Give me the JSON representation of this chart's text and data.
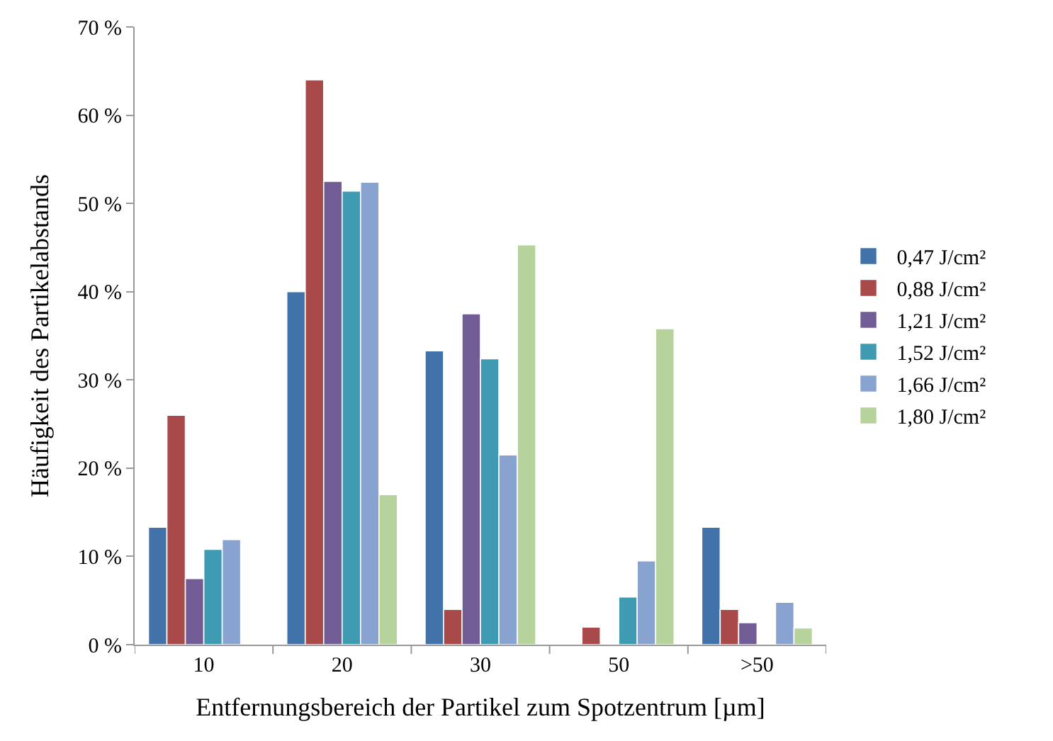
{
  "chart_data": {
    "type": "bar",
    "xlabel": "Entfernungsbereich der Partikel zum Spotzentrum [µm]",
    "ylabel": "Häufigkeit des Partikelabstands",
    "categories": [
      "10",
      "20",
      "30",
      "50",
      ">50"
    ],
    "series": [
      {
        "name": "0,47 J/cm²",
        "color": "#4272aa",
        "values": [
          13.3,
          40,
          33.3,
          null,
          13.3
        ]
      },
      {
        "name": "0,88 J/cm²",
        "color": "#a84a4a",
        "values": [
          26,
          64,
          4,
          2,
          4
        ]
      },
      {
        "name": "1,21 J/cm²",
        "color": "#715c96",
        "values": [
          7.5,
          52.5,
          37.5,
          null,
          2.5
        ]
      },
      {
        "name": "1,52 J/cm²",
        "color": "#3f9bb2",
        "values": [
          10.8,
          51.4,
          32.4,
          5.4,
          null
        ]
      },
      {
        "name": "1,66 J/cm²",
        "color": "#88a3cf",
        "values": [
          11.9,
          52.4,
          21.5,
          9.5,
          4.8
        ]
      },
      {
        "name": "1,80 J/cm²",
        "color": "#b5d39a",
        "values": [
          null,
          17,
          45.3,
          35.8,
          1.9
        ]
      }
    ],
    "ylim": [
      0,
      70
    ],
    "yticks": [
      {
        "value": 0,
        "label": "0 %"
      },
      {
        "value": 10,
        "label": "10 %"
      },
      {
        "value": 20,
        "label": "20 %"
      },
      {
        "value": 30,
        "label": "30 %"
      },
      {
        "value": 40,
        "label": "40 %"
      },
      {
        "value": 50,
        "label": "50 %"
      },
      {
        "value": 60,
        "label": "60 %"
      },
      {
        "value": 70,
        "label": "70 %"
      }
    ],
    "legend": "right"
  }
}
